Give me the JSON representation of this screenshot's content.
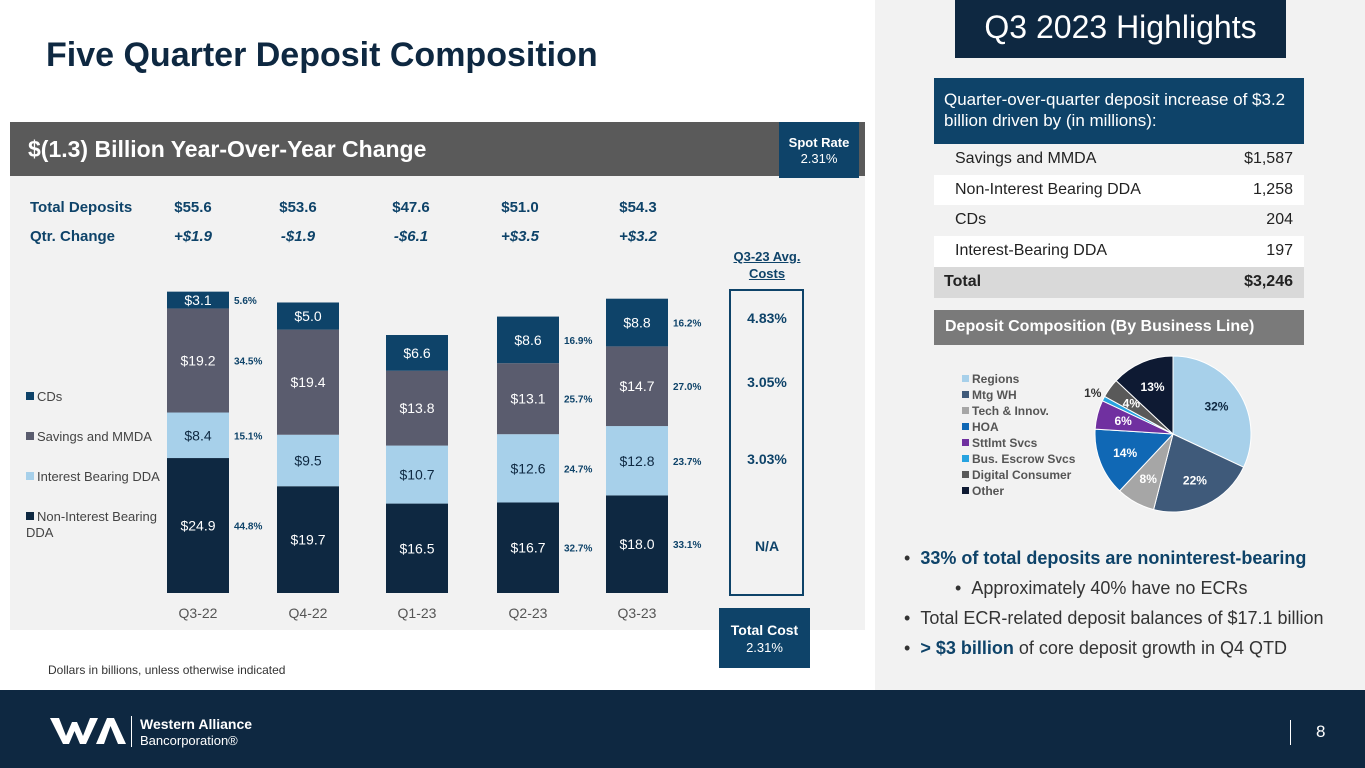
{
  "title": "Five Quarter Deposit Composition",
  "banner": {
    "text": "$(1.3) Billion Year-Over-Year Change",
    "spot_label": "Spot Rate",
    "spot_value": "2.31%"
  },
  "header_rows": {
    "total_label": "Total Deposits",
    "total_values": [
      "$55.6",
      "$53.6",
      "$47.6",
      "$51.0",
      "$54.3"
    ],
    "change_label": "Qtr. Change",
    "change_values": [
      "+$1.9",
      "-$1.9",
      "-$6.1",
      "+$3.5",
      "+$3.2"
    ]
  },
  "chart_data": [
    {
      "type": "bar",
      "stacked": true,
      "categories": [
        "Q3-22",
        "Q4-22",
        "Q1-23",
        "Q2-23",
        "Q3-23"
      ],
      "series": [
        {
          "name": "Non-Interest Bearing DDA",
          "values": [
            24.9,
            19.7,
            16.5,
            16.7,
            18.0
          ],
          "labels": [
            "$24.9",
            "$19.7",
            "$16.5",
            "$16.7",
            "$18.0"
          ],
          "pct": [
            "44.8%",
            "",
            "",
            "32.7%",
            "33.1%"
          ],
          "color": "#0e2841"
        },
        {
          "name": "Interest Bearing DDA",
          "values": [
            8.4,
            9.5,
            10.7,
            12.6,
            12.8
          ],
          "labels": [
            "$8.4",
            "$9.5",
            "$10.7",
            "$12.6",
            "$12.8"
          ],
          "pct": [
            "15.1%",
            "",
            "",
            "24.7%",
            "23.7%"
          ],
          "color": "#a7d0ea"
        },
        {
          "name": "Savings and MMDA",
          "values": [
            19.2,
            19.4,
            13.8,
            13.1,
            14.7
          ],
          "labels": [
            "$19.2",
            "$19.4",
            "$13.8",
            "$13.1",
            "$14.7"
          ],
          "pct": [
            "34.5%",
            "",
            "",
            "25.7%",
            "27.0%"
          ],
          "color": "#5a5c6e"
        },
        {
          "name": "CDs",
          "values": [
            3.1,
            5.0,
            6.6,
            8.6,
            8.8
          ],
          "labels": [
            "$3.1",
            "$5.0",
            "$6.6",
            "$8.6",
            "$8.8"
          ],
          "pct": [
            "5.6%",
            "",
            "",
            "16.9%",
            "16.2%"
          ],
          "color": "#0e4369"
        }
      ],
      "legend_order": [
        "CDs",
        "Savings and MMDA",
        "Interest Bearing DDA",
        "Non-Interest Bearing DDA"
      ],
      "legend_placement": "left"
    },
    {
      "type": "pie",
      "title": "Deposit Composition (By Business Line)",
      "slices": [
        {
          "name": "Regions",
          "value": 32,
          "label": "32%",
          "color": "#a7d0ea"
        },
        {
          "name": "Mtg WH",
          "value": 22,
          "label": "22%",
          "color": "#3f5a7a"
        },
        {
          "name": "Tech & Innov.",
          "value": 8,
          "label": "8%",
          "color": "#a6a6a6"
        },
        {
          "name": "HOA",
          "value": 14,
          "label": "14%",
          "color": "#1068b5"
        },
        {
          "name": "Sttlmt Svcs",
          "value": 6,
          "label": "6%",
          "color": "#7030a0"
        },
        {
          "name": "Bus. Escrow Svcs",
          "value": 1,
          "label": "1%",
          "color": "#27a3e0"
        },
        {
          "name": "Digital Consumer",
          "value": 4,
          "label": "4%",
          "color": "#595959"
        },
        {
          "name": "Other",
          "value": 13,
          "label": "13%",
          "color": "#0e1a33"
        }
      ],
      "legend_placement": "left"
    }
  ],
  "avg_costs": {
    "title": "Q3-23 Avg. Costs",
    "values": [
      "4.83%",
      "3.05%",
      "3.03%",
      "N/A"
    ],
    "total_label": "Total Cost",
    "total_value": "2.31%"
  },
  "footnote": "Dollars in billions, unless otherwise indicated",
  "highlights": {
    "title": "Q3 2023 Highlights",
    "qoq_text": "Quarter-over-quarter deposit increase of $3.2 billion driven by (in millions):",
    "rows": [
      {
        "label": "Savings and MMDA",
        "value": "$1,587"
      },
      {
        "label": "Non-Interest Bearing DDA",
        "value": "1,258"
      },
      {
        "label": "CDs",
        "value": "204"
      },
      {
        "label": "Interest-Bearing DDA",
        "value": "197"
      }
    ],
    "total": {
      "label": "Total",
      "value": "$3,246"
    },
    "bullets": [
      {
        "em": "33% of total deposits are noninterest-bearing",
        "rest": ""
      },
      {
        "em": "",
        "rest": "Approximately 40% have no ECRs"
      },
      {
        "em": "",
        "rest": "Total ECR-related deposit balances of $17.1 billion"
      },
      {
        "em": "> $3 billion",
        "rest": " of core deposit growth in Q4 QTD"
      }
    ]
  },
  "footer": {
    "company_line1": "Western Alliance",
    "company_line2": "Bancorporation®",
    "page_number": "8"
  }
}
